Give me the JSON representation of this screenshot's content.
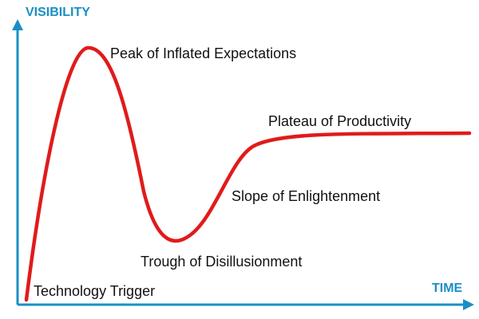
{
  "axes": {
    "y_title": "VISIBILITY",
    "x_title": "TIME",
    "color": "#1a8fc4"
  },
  "curve": {
    "color": "#e01b1b"
  },
  "phases": [
    "Technology Trigger",
    "Peak of Inflated Expectations",
    "Trough of Disillusionment",
    "Slope of Enlightenment",
    "Plateau of Productivity"
  ]
}
